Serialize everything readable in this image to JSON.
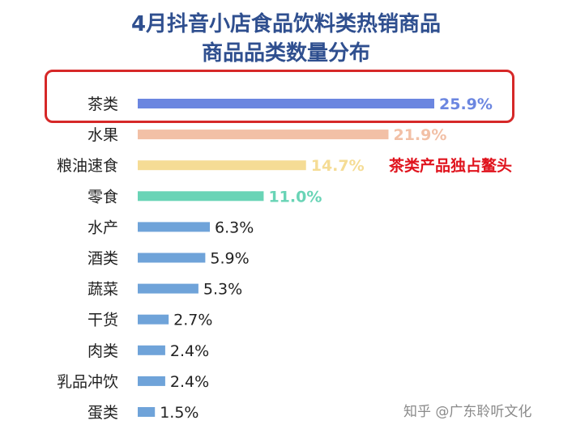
{
  "title_line1": "4月抖音小店食品饮料类热销商品",
  "title_line2": "商品品类数量分布",
  "annotation": "茶类产品独占鳌头",
  "watermark": "知乎 @广东聆听文化",
  "chart_data": {
    "type": "bar",
    "orientation": "horizontal",
    "categories": [
      "茶类",
      "水果",
      "粮油速食",
      "零食",
      "水产",
      "酒类",
      "蔬菜",
      "干货",
      "肉类",
      "乳品冲饮",
      "蛋类"
    ],
    "values": [
      25.9,
      21.9,
      14.7,
      11.0,
      6.3,
      5.9,
      5.3,
      2.7,
      2.4,
      2.4,
      1.5
    ],
    "value_labels": [
      "25.9%",
      "21.9%",
      "14.7%",
      "11.0%",
      "6.3%",
      "5.9%",
      "5.3%",
      "2.7%",
      "2.4%",
      "2.4%",
      "1.5%"
    ],
    "bar_colors": [
      "#6b86e0",
      "#f2c0a6",
      "#f5dc95",
      "#69d4b6",
      "#6fa3d9",
      "#6fa3d9",
      "#6fa3d9",
      "#6fa3d9",
      "#6fa3d9",
      "#6fa3d9",
      "#6fa3d9"
    ],
    "label_colors": [
      "#6b86e0",
      "#f2c0a6",
      "#f5dc95",
      "#69d4b6",
      "#222222",
      "#222222",
      "#222222",
      "#222222",
      "#222222",
      "#222222",
      "#222222"
    ],
    "highlighted_category": "茶类",
    "title": "4月抖音小店食品饮料类热销商品 商品品类数量分布",
    "xlabel": "",
    "ylabel": "",
    "xlim": [
      0,
      25.9
    ],
    "grid": false,
    "legend": "none"
  }
}
